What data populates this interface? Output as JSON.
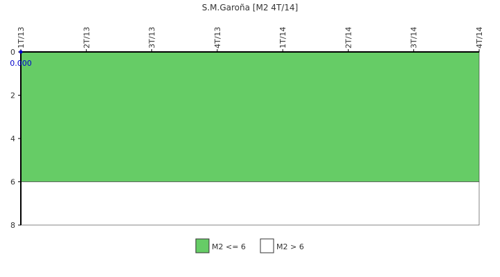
{
  "chart_data": {
    "type": "line",
    "title": "S.M.Garoña [M2 4T/14]",
    "categories": [
      "1T/13",
      "2T/13",
      "3T/13",
      "4T/13",
      "1T/14",
      "2T/14",
      "3T/14",
      "4T/14"
    ],
    "series": [
      {
        "color": "#0000cc",
        "values": [
          0,
          null,
          null,
          null,
          null,
          null,
          null,
          null
        ],
        "value_labels": [
          "0.000",
          null,
          null,
          null,
          null,
          null,
          null,
          null
        ]
      }
    ],
    "bands": [
      {
        "name": "M2 <= 6",
        "color": "#66cc66",
        "from": 0,
        "to": 6
      },
      {
        "name": "M2 > 6",
        "color": "#ffffff",
        "from": 6,
        "to": 8
      }
    ],
    "ylim": [
      0,
      8
    ],
    "y_inverted": true,
    "yticks": [
      0,
      2,
      4,
      6,
      8
    ]
  }
}
